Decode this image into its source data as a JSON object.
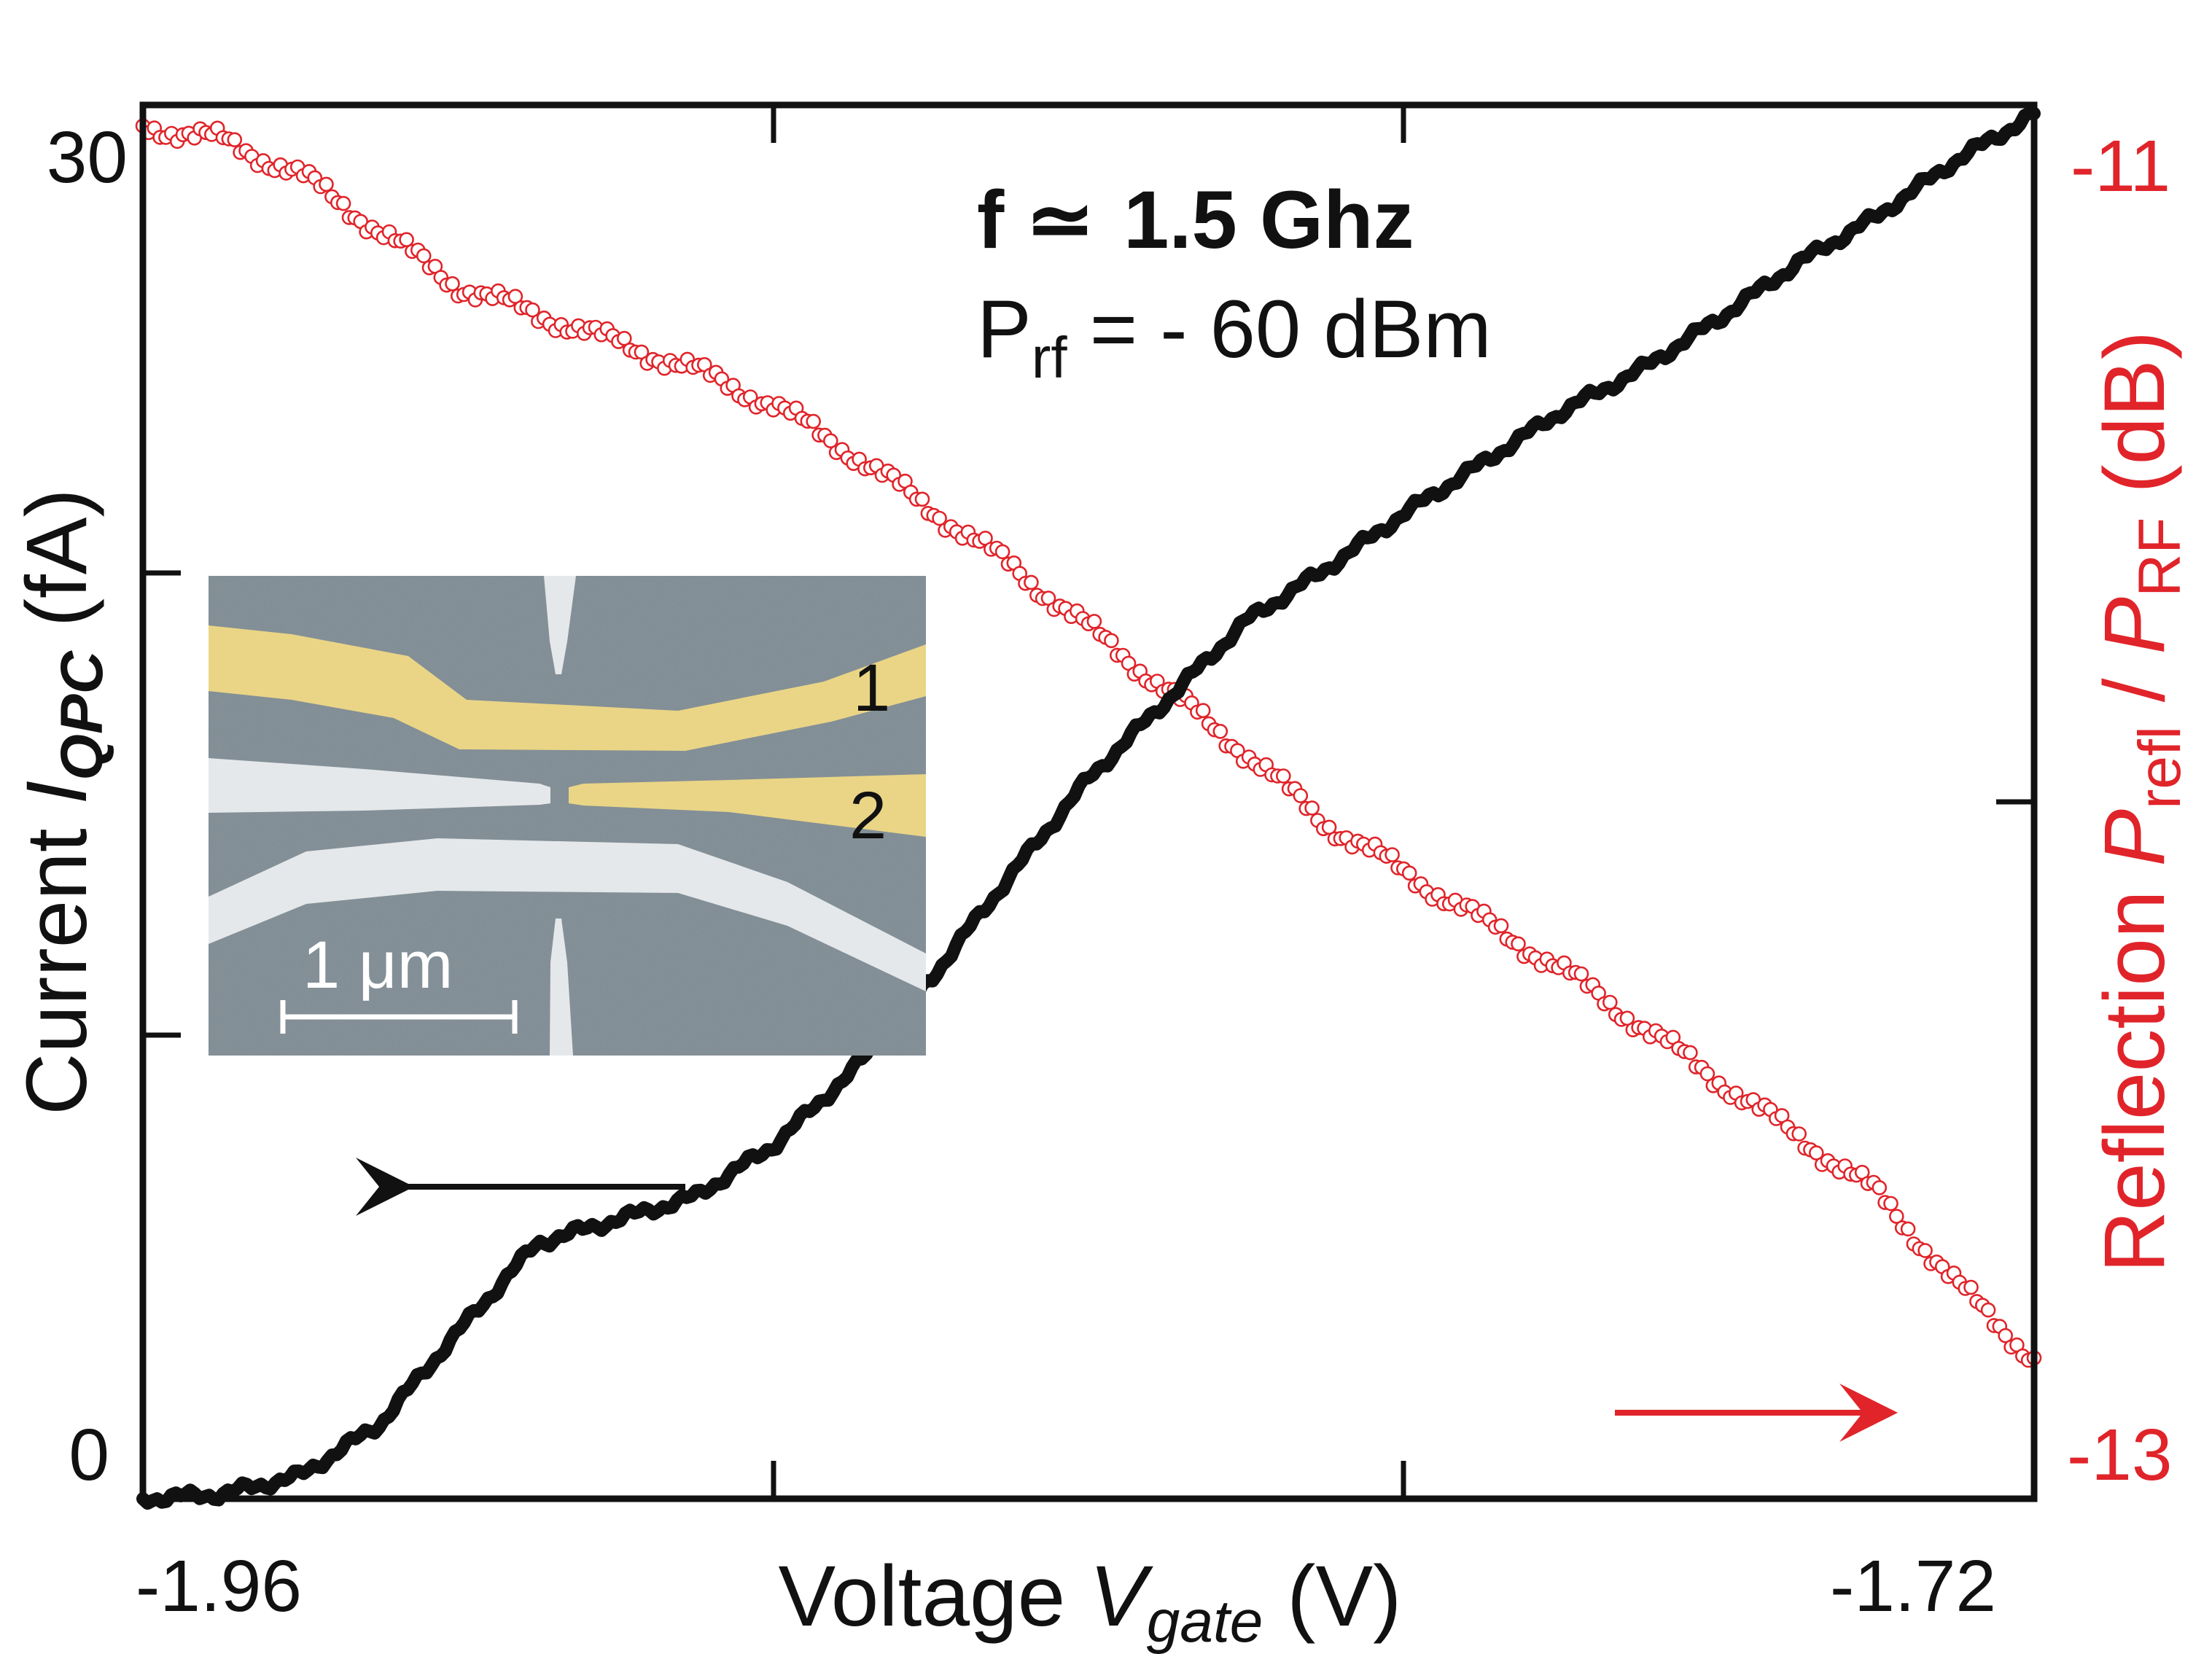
{
  "chart_data": {
    "type": "line",
    "title": "",
    "x": [
      -1.96,
      -1.95,
      -1.94,
      -1.93,
      -1.92,
      -1.91,
      -1.9,
      -1.89,
      -1.88,
      -1.87,
      -1.86,
      -1.85,
      -1.84,
      -1.83,
      -1.82,
      -1.81,
      -1.8,
      -1.79,
      -1.78,
      -1.77,
      -1.76,
      -1.75,
      -1.74,
      -1.73,
      -1.72
    ],
    "xlim": [
      -1.96,
      -1.72
    ],
    "x_ticks_labeled": [
      "-1.96",
      "-1.72"
    ],
    "xlabel": {
      "pre": "Voltage ",
      "italic": "V",
      "sub": "gate",
      "post": " (V)"
    },
    "left_axis": {
      "ylim": [
        0,
        30
      ],
      "tick_labels": [
        "30",
        "0"
      ],
      "label": {
        "pre": "Current  ",
        "italic": "I",
        "sub": "QPC",
        "post": " (fA)"
      },
      "color": "#111111"
    },
    "right_axis": {
      "ylim": [
        -13,
        -11
      ],
      "tick_labels": [
        "-11",
        "-13"
      ],
      "label": {
        "pre": "Reflection ",
        "p1": "P",
        "s1": "refl",
        "mid": " / ",
        "p2": "P",
        "s2": "RF",
        "post": " (dB)"
      },
      "color": "#e0242a"
    },
    "series": [
      {
        "axis": "left",
        "style": "thick-line",
        "color": "#111111",
        "values": [
          0.0,
          0.1,
          0.5,
          1.6,
          3.6,
          5.5,
          6.0,
          6.5,
          7.6,
          9.2,
          11.2,
          13.4,
          15.5,
          17.2,
          18.9,
          20.0,
          21.2,
          22.3,
          23.4,
          24.3,
          25.4,
          26.6,
          27.6,
          28.8,
          29.8
        ]
      },
      {
        "axis": "right",
        "style": "open-circles",
        "color": "#e0242a",
        "values": [
          -11.03,
          -11.05,
          -11.1,
          -11.18,
          -11.26,
          -11.3,
          -11.34,
          -11.38,
          -11.43,
          -11.5,
          -11.58,
          -11.66,
          -11.75,
          -11.84,
          -11.93,
          -12.03,
          -12.1,
          -12.17,
          -12.24,
          -12.32,
          -12.4,
          -12.48,
          -12.56,
          -12.69,
          -12.8
        ]
      }
    ],
    "annotations": {
      "freq": {
        "label": "f",
        "symbol": "≃",
        "value": "1.5 Ghz"
      },
      "power": {
        "main": "P",
        "sub": "rf",
        "value": " = - 60 dBm"
      }
    },
    "arrows": {
      "left_arrow_color": "#111111",
      "right_arrow_color": "#e0242a"
    },
    "inset": {
      "label_1": "1",
      "label_2": "2",
      "scale_text": "1 μm"
    }
  }
}
